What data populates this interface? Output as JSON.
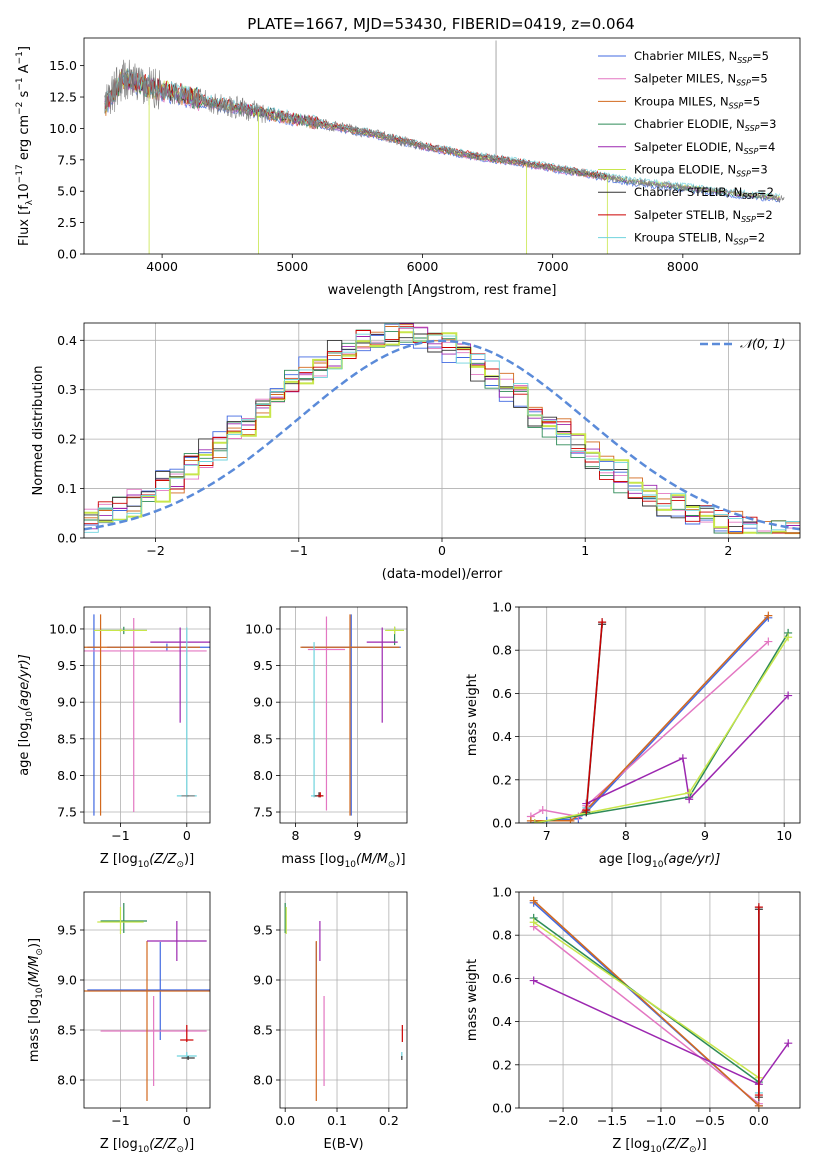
{
  "figure_title": "PLATE=1667, MJD=53430, FIBERID=0419, z=0.064",
  "model_colors": {
    "chabrier_miles": "#4169e1",
    "salpeter_miles": "#e377c2",
    "kroupa_miles": "#d2691e",
    "chabrier_elodie": "#2e8b57",
    "salpeter_elodie": "#9c27b0",
    "kroupa_elodie": "#c8e64b",
    "chabrier_stelib": "#333333",
    "salpeter_stelib": "#cc0000",
    "kroupa_stelib": "#6fd3dd",
    "data": "#808080",
    "normal": "#5b8bd9"
  },
  "chart_data": [
    {
      "id": "spectrum",
      "type": "line",
      "title": "PLATE=1667, MJD=53430, FIBERID=0419, z=0.064",
      "xlabel": "wavelength [Angstrom, rest frame]",
      "ylabel_main": "Flux [f",
      "ylabel_sub": "λ",
      "ylabel_mid": "10",
      "ylabel_sup": "−17",
      "ylabel_rest": " erg cm",
      "ylabel_sup2": "−2",
      "ylabel_rest2": " s",
      "ylabel_sup3": "−1",
      "ylabel_rest3": " A",
      "ylabel_sup4": "−1",
      "ylabel_end": "]",
      "xlim": [
        3400,
        8900
      ],
      "ylim": [
        0,
        17.2
      ],
      "xticks": [
        "4000",
        "5000",
        "6000",
        "7000",
        "8000"
      ],
      "xtick_values": [
        4000,
        5000,
        6000,
        7000,
        8000
      ],
      "yticks": [
        "0.0",
        "2.5",
        "5.0",
        "7.5",
        "10.0",
        "12.5",
        "15.0"
      ],
      "ytick_values": [
        0,
        2.5,
        5,
        7.5,
        10,
        12.5,
        15
      ],
      "legend_position": "top-right",
      "legend": [
        {
          "name": "Chabrier MILES, N",
          "sub": "SSP",
          "count": "=5",
          "color": "#4169e1"
        },
        {
          "name": "Salpeter MILES, N",
          "sub": "SSP",
          "count": "=5",
          "color": "#e377c2"
        },
        {
          "name": "Kroupa MILES, N",
          "sub": "SSP",
          "count": "=5",
          "color": "#d2691e"
        },
        {
          "name": "Chabrier ELODIE, N",
          "sub": "SSP",
          "count": "=3",
          "color": "#2e8b57"
        },
        {
          "name": "Salpeter ELODIE, N",
          "sub": "SSP",
          "count": "=4",
          "color": "#9c27b0"
        },
        {
          "name": "Kroupa ELODIE, N",
          "sub": "SSP",
          "count": "=3",
          "color": "#c8e64b"
        },
        {
          "name": "Chabrier STELIB, N",
          "sub": "SSP",
          "count": "=2",
          "color": "#333333"
        },
        {
          "name": "Salpeter STELIB, N",
          "sub": "SSP",
          "count": "=2",
          "color": "#cc0000"
        },
        {
          "name": "Kroupa STELIB, N",
          "sub": "SSP",
          "count": "=2",
          "color": "#6fd3dd"
        }
      ],
      "continuum_nodes": [
        [
          3550,
          11.6
        ],
        [
          3700,
          14.0
        ],
        [
          3900,
          13.3
        ],
        [
          4100,
          12.8
        ],
        [
          4400,
          12.0
        ],
        [
          4800,
          11.2
        ],
        [
          5200,
          10.4
        ],
        [
          5600,
          9.6
        ],
        [
          6000,
          8.6
        ],
        [
          6400,
          7.8
        ],
        [
          6800,
          7.2
        ],
        [
          7200,
          6.5
        ],
        [
          7600,
          5.8
        ],
        [
          8000,
          5.3
        ],
        [
          8400,
          4.8
        ],
        [
          8800,
          4.4
        ]
      ]
    },
    {
      "id": "residuals",
      "type": "line",
      "xlabel": "(data-model)/error",
      "ylabel": "Normed distribution",
      "xlim": [
        -2.5,
        2.5
      ],
      "ylim": [
        0,
        0.435
      ],
      "xticks": [
        "−2",
        "−1",
        "0",
        "1",
        "2"
      ],
      "xtick_values": [
        -2,
        -1,
        0,
        1,
        2
      ],
      "yticks": [
        "0.0",
        "0.1",
        "0.2",
        "0.3",
        "0.4"
      ],
      "ytick_values": [
        0,
        0.1,
        0.2,
        0.3,
        0.4
      ],
      "legend_position": "top-right",
      "legend_label": "𝒩(0, 1)",
      "bin_width": 0.1,
      "gaussian": {
        "mean": 0,
        "sigma": 1
      }
    },
    {
      "id": "age_vs_Z",
      "type": "scatter",
      "xlabel_pre": "Z [log",
      "xlabel_sub": "10",
      "xlabel_post": "(Z/Z",
      "xlabel_sub2": "⊙",
      "xlabel_end": ")]",
      "ylabel_pre": "age  [log",
      "ylabel_sub": "10",
      "ylabel_post": "(age/yr)]",
      "xlim": [
        -1.55,
        0.35
      ],
      "ylim": [
        7.35,
        10.3
      ],
      "xticks": [
        "−1",
        "0"
      ],
      "xtick_values": [
        -1,
        0
      ],
      "yticks": [
        "7.5",
        "8.0",
        "8.5",
        "9.0",
        "9.5",
        "10.0"
      ],
      "ytick_values": [
        7.5,
        8.0,
        8.5,
        9.0,
        9.5,
        10.0
      ],
      "points": [
        {
          "x": -1.4,
          "y": 9.75,
          "xerr": 0.1,
          "yerr": [
            2.3,
            0.45
          ],
          "color": "#4169e1"
        },
        {
          "x": -0.3,
          "y": 9.75,
          "xerr": 0.9,
          "yerr": [
            0.05,
            0.05
          ],
          "color": "#4169e1"
        },
        {
          "x": -0.8,
          "y": 9.7,
          "xerr": 1.1,
          "yerr": [
            2.2,
            0.45
          ],
          "color": "#e377c2"
        },
        {
          "x": -1.3,
          "y": 9.75,
          "xerr": 1.5,
          "yerr": [
            2.3,
            0.45
          ],
          "color": "#d2691e"
        },
        {
          "x": -0.95,
          "y": 9.98,
          "xerr": 0.35,
          "yerr": [
            0.05,
            0.05
          ],
          "color": "#2e8b57"
        },
        {
          "x": -0.1,
          "y": 9.82,
          "xerr": 0.45,
          "yerr": [
            1.1,
            0.2
          ],
          "color": "#9c27b0"
        },
        {
          "x": -1.0,
          "y": 9.98,
          "xerr": 0.4,
          "yerr": [
            0.02,
            0.02
          ],
          "color": "#c8e64b"
        },
        {
          "x": 0.0,
          "y": 7.72,
          "xerr": 0.15,
          "yerr": [
            0.02,
            2.3
          ],
          "color": "#6fd3dd"
        },
        {
          "x": 0.02,
          "y": 7.72,
          "xerr": 0.1,
          "yerr": [
            0.01,
            0.01
          ],
          "color": "#808080"
        }
      ]
    },
    {
      "id": "age_vs_mass",
      "type": "scatter",
      "xlabel_pre": "mass [log",
      "xlabel_sub": "10",
      "xlabel_post": "(M/M",
      "xlabel_sub2": "⊙",
      "xlabel_end": ")]",
      "xlim": [
        7.75,
        9.8
      ],
      "ylim": [
        7.35,
        10.3
      ],
      "xticks": [
        "8",
        "9"
      ],
      "xtick_values": [
        8,
        9
      ],
      "yticks": [
        "7.5",
        "8.0",
        "8.5",
        "9.0",
        "9.5",
        "10.0"
      ],
      "ytick_values": [
        7.5,
        8.0,
        8.5,
        9.0,
        9.5,
        10.0
      ],
      "points": [
        {
          "x": 8.9,
          "y": 9.75,
          "xerr": 0.8,
          "yerr": [
            2.3,
            0.45
          ],
          "color": "#4169e1"
        },
        {
          "x": 8.5,
          "y": 9.72,
          "xerr": 0.3,
          "yerr": [
            2.2,
            0.45
          ],
          "color": "#e377c2"
        },
        {
          "x": 8.88,
          "y": 9.75,
          "xerr": 0.8,
          "yerr": [
            2.3,
            0.45
          ],
          "color": "#d2691e"
        },
        {
          "x": 9.6,
          "y": 9.98,
          "xerr": 0.15,
          "yerr": [
            0.2,
            0.05
          ],
          "color": "#2e8b57"
        },
        {
          "x": 9.4,
          "y": 9.82,
          "xerr": 0.25,
          "yerr": [
            1.1,
            0.2
          ],
          "color": "#9c27b0"
        },
        {
          "x": 9.6,
          "y": 9.98,
          "xerr": 0.15,
          "yerr": [
            0.05,
            0.05
          ],
          "color": "#c8e64b"
        },
        {
          "x": 8.3,
          "y": 7.72,
          "xerr": 0.05,
          "yerr": [
            0.02,
            2.1
          ],
          "color": "#6fd3dd"
        },
        {
          "x": 8.38,
          "y": 7.72,
          "xerr": 0.07,
          "yerr": [
            0.02,
            0.05
          ],
          "color": "#333333"
        },
        {
          "x": 8.4,
          "y": 7.72,
          "xerr": 0.05,
          "yerr": [
            0.02,
            0.05
          ],
          "color": "#cc0000"
        }
      ]
    },
    {
      "id": "mass_weight_vs_age",
      "type": "line",
      "xlabel_pre": "age  [log",
      "xlabel_sub": "10",
      "xlabel_post": "(age/yr)]",
      "ylabel": "mass weight",
      "xlim": [
        6.65,
        10.2
      ],
      "ylim": [
        0,
        1.0
      ],
      "xticks": [
        "7",
        "8",
        "9",
        "10"
      ],
      "xtick_values": [
        7,
        8,
        9,
        10
      ],
      "yticks": [
        "0.0",
        "0.2",
        "0.4",
        "0.6",
        "0.8",
        "1.0"
      ],
      "ytick_values": [
        0,
        0.2,
        0.4,
        0.6,
        0.8,
        1.0
      ],
      "series": [
        {
          "color": "#4169e1",
          "points": [
            [
              6.8,
              0.0
            ],
            [
              7.0,
              0.01
            ],
            [
              7.4,
              0.02
            ],
            [
              7.5,
              0.05
            ],
            [
              9.8,
              0.95
            ]
          ]
        },
        {
          "color": "#e377c2",
          "points": [
            [
              6.8,
              0.03
            ],
            [
              6.95,
              0.06
            ],
            [
              7.4,
              0.03
            ],
            [
              7.5,
              0.08
            ],
            [
              9.8,
              0.84
            ]
          ]
        },
        {
          "color": "#d2691e",
          "points": [
            [
              6.8,
              0.01
            ],
            [
              7.3,
              0.01
            ],
            [
              7.5,
              0.06
            ],
            [
              9.8,
              0.96
            ]
          ]
        },
        {
          "color": "#2e8b57",
          "points": [
            [
              6.85,
              0.0
            ],
            [
              8.8,
              0.12
            ],
            [
              10.05,
              0.88
            ]
          ]
        },
        {
          "color": "#9c27b0",
          "points": [
            [
              7.5,
              0.09
            ],
            [
              8.72,
              0.3
            ],
            [
              8.8,
              0.11
            ],
            [
              10.05,
              0.59
            ]
          ]
        },
        {
          "color": "#c8e64b",
          "points": [
            [
              6.85,
              0.0
            ],
            [
              8.8,
              0.14
            ],
            [
              10.05,
              0.86
            ]
          ]
        },
        {
          "color": "#6fd3dd",
          "points": [
            [
              7.5,
              0.07
            ],
            [
              7.7,
              0.93
            ]
          ]
        },
        {
          "color": "#333333",
          "points": [
            [
              7.5,
              0.05
            ],
            [
              7.7,
              0.92
            ]
          ]
        },
        {
          "color": "#cc0000",
          "points": [
            [
              7.5,
              0.06
            ],
            [
              7.7,
              0.93
            ]
          ]
        }
      ]
    },
    {
      "id": "mass_vs_Z",
      "type": "scatter",
      "xlabel_pre": "Z [log",
      "xlabel_sub": "10",
      "xlabel_post": "(Z/Z",
      "xlabel_sub2": "⊙",
      "xlabel_end": ")]",
      "ylabel_pre": "mass [log",
      "ylabel_sub": "10",
      "ylabel_post": "(M/M",
      "ylabel_sub2": "⊙",
      "ylabel_end": ")]",
      "xlim": [
        -1.55,
        0.35
      ],
      "ylim": [
        7.72,
        9.88
      ],
      "xticks": [
        "−1",
        "0"
      ],
      "xtick_values": [
        -1,
        0
      ],
      "yticks": [
        "8.0",
        "8.5",
        "9.0",
        "9.5"
      ],
      "ytick_values": [
        8.0,
        8.5,
        9.0,
        9.5
      ],
      "points": [
        {
          "x": -0.4,
          "y": 8.9,
          "xerr": 1.1,
          "yerr": [
            0.5,
            0.48
          ],
          "color": "#4169e1"
        },
        {
          "x": -0.5,
          "y": 8.49,
          "xerr": 0.8,
          "yerr": [
            0.55,
            0.35
          ],
          "color": "#e377c2"
        },
        {
          "x": -0.6,
          "y": 8.89,
          "xerr": 1.2,
          "yerr": [
            1.1,
            0.5
          ],
          "color": "#d2691e"
        },
        {
          "x": -0.95,
          "y": 9.59,
          "xerr": 0.35,
          "yerr": [
            0.12,
            0.18
          ],
          "color": "#2e8b57"
        },
        {
          "x": -0.15,
          "y": 9.39,
          "xerr": 0.45,
          "yerr": [
            0.2,
            0.2
          ],
          "color": "#9c27b0"
        },
        {
          "x": -1.0,
          "y": 9.58,
          "xerr": 0.35,
          "yerr": [
            0.12,
            0.15
          ],
          "color": "#c8e64b"
        },
        {
          "x": 0.0,
          "y": 8.24,
          "xerr": 0.15,
          "yerr": [
            0.02,
            0.04
          ],
          "color": "#6fd3dd"
        },
        {
          "x": 0.02,
          "y": 8.22,
          "xerr": 0.1,
          "yerr": [
            0.02,
            0.02
          ],
          "color": "#333333"
        },
        {
          "x": 0.0,
          "y": 8.4,
          "xerr": 0.1,
          "yerr": [
            0.02,
            0.15
          ],
          "color": "#cc0000"
        }
      ]
    },
    {
      "id": "mass_vs_ebv",
      "type": "scatter",
      "xlabel": "E(B-V)",
      "xlim": [
        -0.01,
        0.235
      ],
      "ylim": [
        7.72,
        9.88
      ],
      "xticks": [
        "0.0",
        "0.1",
        "0.2"
      ],
      "xtick_values": [
        0,
        0.1,
        0.2
      ],
      "yticks": [
        "8.0",
        "8.5",
        "9.0",
        "9.5"
      ],
      "ytick_values": [
        8.0,
        8.5,
        9.0,
        9.5
      ],
      "points": [
        {
          "x": 0.06,
          "y": 8.9,
          "yerr": [
            0.5,
            0.48
          ],
          "color": "#4169e1"
        },
        {
          "x": 0.075,
          "y": 8.49,
          "yerr": [
            0.55,
            0.35
          ],
          "color": "#e377c2"
        },
        {
          "x": 0.06,
          "y": 8.89,
          "yerr": [
            1.1,
            0.5
          ],
          "color": "#d2691e"
        },
        {
          "x": 0.0,
          "y": 9.59,
          "yerr": [
            0.12,
            0.18
          ],
          "color": "#2e8b57"
        },
        {
          "x": 0.067,
          "y": 9.39,
          "yerr": [
            0.2,
            0.2
          ],
          "color": "#9c27b0"
        },
        {
          "x": 0.002,
          "y": 9.58,
          "yerr": [
            0.12,
            0.15
          ],
          "color": "#c8e64b"
        },
        {
          "x": 0.225,
          "y": 8.24,
          "yerr": [
            0.02,
            0.04
          ],
          "color": "#6fd3dd"
        },
        {
          "x": 0.225,
          "y": 8.22,
          "yerr": [
            0.02,
            0.02
          ],
          "color": "#333333"
        },
        {
          "x": 0.226,
          "y": 8.4,
          "yerr": [
            0.02,
            0.15
          ],
          "color": "#cc0000"
        }
      ]
    },
    {
      "id": "mass_weight_vs_Z",
      "type": "line",
      "xlabel_pre": "Z [log",
      "xlabel_sub": "10",
      "xlabel_post": "(Z/Z",
      "xlabel_sub2": "⊙",
      "xlabel_end": ")]",
      "ylabel": "mass weight",
      "xlim": [
        -2.45,
        0.42
      ],
      "ylim": [
        0,
        1.0
      ],
      "xticks": [
        "−2.0",
        "−1.5",
        "−1.0",
        "−0.5",
        "0.0"
      ],
      "xtick_values": [
        -2,
        -1.5,
        -1,
        -0.5,
        0
      ],
      "yticks": [
        "0.0",
        "0.2",
        "0.4",
        "0.6",
        "0.8",
        "1.0"
      ],
      "ytick_values": [
        0,
        0.2,
        0.4,
        0.6,
        0.8,
        1.0
      ],
      "series": [
        {
          "color": "#4169e1",
          "points": [
            [
              -2.3,
              0.95
            ],
            [
              0.0,
              0.01
            ]
          ]
        },
        {
          "color": "#e377c2",
          "points": [
            [
              -2.3,
              0.84
            ],
            [
              0.0,
              0.02
            ]
          ]
        },
        {
          "color": "#d2691e",
          "points": [
            [
              -2.3,
              0.96
            ],
            [
              0.0,
              0.01
            ]
          ]
        },
        {
          "color": "#2e8b57",
          "points": [
            [
              -2.3,
              0.88
            ],
            [
              0.0,
              0.12
            ]
          ]
        },
        {
          "color": "#9c27b0",
          "points": [
            [
              -2.3,
              0.59
            ],
            [
              0.0,
              0.11
            ],
            [
              0.3,
              0.3
            ]
          ]
        },
        {
          "color": "#c8e64b",
          "points": [
            [
              -2.3,
              0.86
            ],
            [
              0.0,
              0.14
            ]
          ]
        },
        {
          "color": "#6fd3dd",
          "points": [
            [
              0.0,
              0.93
            ],
            [
              0.0,
              0.07
            ]
          ]
        },
        {
          "color": "#333333",
          "points": [
            [
              0.0,
              0.92
            ],
            [
              0.0,
              0.05
            ]
          ]
        },
        {
          "color": "#cc0000",
          "points": [
            [
              0.0,
              0.93
            ],
            [
              0.0,
              0.06
            ]
          ]
        }
      ]
    }
  ]
}
